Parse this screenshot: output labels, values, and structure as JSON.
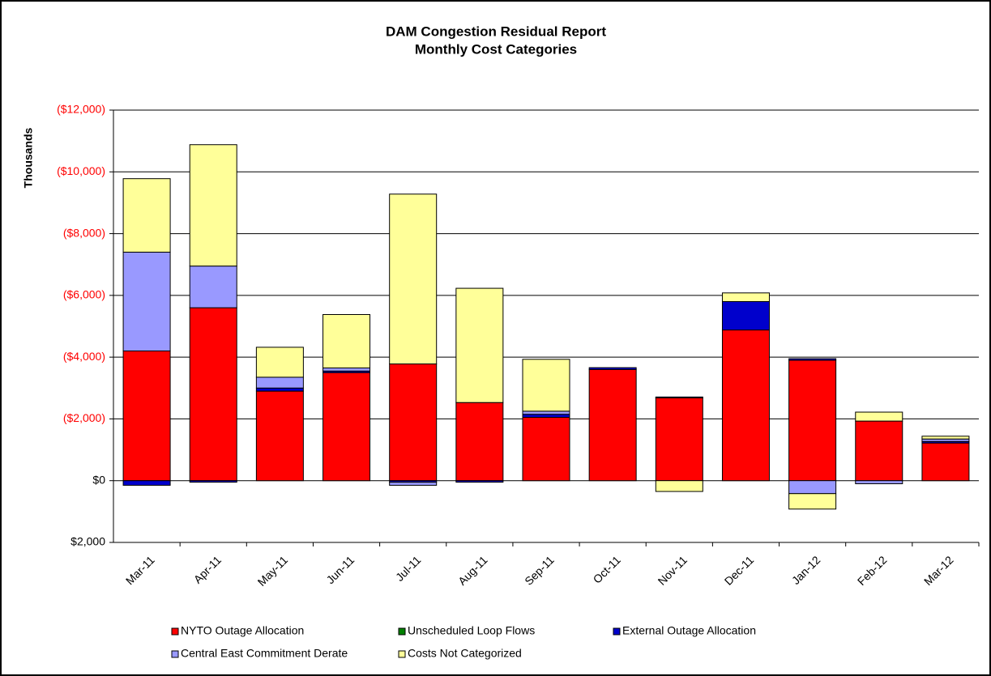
{
  "chart_data": {
    "type": "stacked_bar",
    "title": "DAM Congestion Residual Report",
    "subtitle": "Monthly Cost Categories",
    "y_label": "Thousands",
    "categories": [
      "Mar-11",
      "Apr-11",
      "May-11",
      "Jun-11",
      "Jul-11",
      "Aug-11",
      "Sep-11",
      "Oct-11",
      "Nov-11",
      "Dec-11",
      "Jan-12",
      "Feb-12",
      "Mar-12"
    ],
    "series": [
      {
        "name": "NYTO  Outage Allocation",
        "color": "#ff0000",
        "values": [
          4200,
          5600,
          2900,
          3500,
          3780,
          2530,
          2050,
          3600,
          2680,
          4880,
          3900,
          1930,
          1220
        ]
      },
      {
        "name": "Unscheduled Loop Flows",
        "color": "#008000",
        "values": [
          0,
          0,
          0,
          0,
          0,
          0,
          0,
          0,
          0,
          0,
          0,
          0,
          0
        ]
      },
      {
        "name": "External Outage Allocation",
        "color": "#0000cc",
        "values": [
          -150,
          -50,
          100,
          50,
          -50,
          -50,
          100,
          60,
          30,
          920,
          50,
          0,
          50
        ]
      },
      {
        "name": "Central East Commitment Derate",
        "color": "#9999ff",
        "values": [
          3200,
          1350,
          350,
          100,
          -100,
          0,
          100,
          0,
          0,
          0,
          -420,
          -100,
          80
        ]
      },
      {
        "name": "Costs Not Categorized",
        "color": "#ffff99",
        "values": [
          2380,
          3930,
          970,
          1730,
          5500,
          3700,
          1680,
          0,
          -350,
          280,
          -500,
          290,
          90
        ]
      }
    ],
    "ylim": [
      -2000,
      12000
    ],
    "yticks": [
      {
        "value": 12000,
        "label": "($12,000)"
      },
      {
        "value": 10000,
        "label": "($10,000)"
      },
      {
        "value": 8000,
        "label": "($8,000)"
      },
      {
        "value": 6000,
        "label": "($6,000)"
      },
      {
        "value": 4000,
        "label": "($4,000)"
      },
      {
        "value": 2000,
        "label": "($2,000)"
      },
      {
        "value": 0,
        "label": "$0"
      },
      {
        "value": -2000,
        "label": "$2,000"
      }
    ],
    "cost_tick_color": "#ff0000",
    "grid": true
  }
}
